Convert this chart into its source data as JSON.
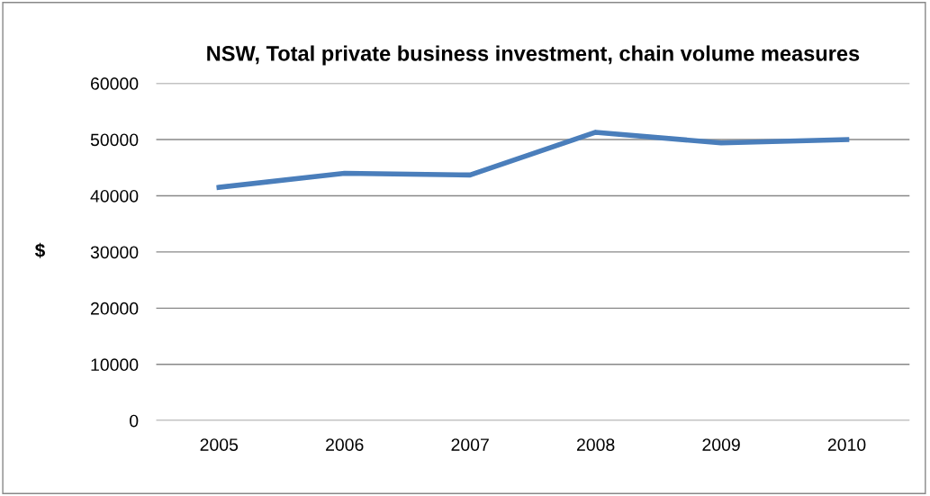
{
  "chart_data": {
    "type": "line",
    "title": "NSW, Total private business investment, chain volume measures",
    "ylabel": "$",
    "categories": [
      "2005",
      "2006",
      "2007",
      "2008",
      "2009",
      "2010"
    ],
    "series": [
      {
        "color": "#4a7ebb",
        "values": [
          41500,
          44000,
          43700,
          51300,
          49400,
          50000
        ]
      }
    ],
    "ylim": [
      0,
      60000
    ],
    "yticks": [
      0,
      10000,
      20000,
      30000,
      40000,
      50000,
      60000
    ],
    "grid": "y",
    "legend": false,
    "marker": "none",
    "line_style": "solid"
  }
}
